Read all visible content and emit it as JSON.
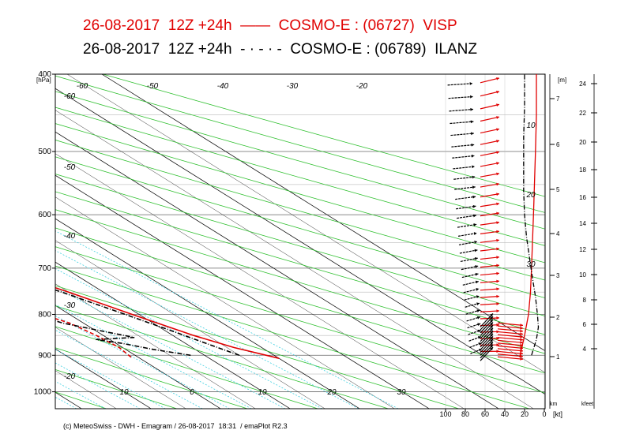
{
  "titles": {
    "line1": "26-08-2017  12Z +24h  ——  COSMO-E : (06727)  VISP",
    "line2": "26-08-2017  12Z +24h  - · - · -  COSMO-E : (06789)  ILANZ"
  },
  "footer": "(c) MeteoSwiss - DWH - Emagram / 26-08-2017  18:31  / emaPlot R2.3",
  "colors": {
    "visp": "#e00000",
    "ilanz": "#000000",
    "dry_adiabat": "#30c030",
    "mixing_ratio": "#40d0e0",
    "isotherm": "#000000",
    "grid": "#888888"
  },
  "chart_data": {
    "type": "line",
    "yunit": "[hPa]",
    "xlim": [
      -60,
      40
    ],
    "ylim": [
      400,
      1050
    ],
    "pressure_ticks": [
      "400",
      "500",
      "600",
      "700",
      "800",
      "900",
      "1000"
    ],
    "temp_labels": [
      {
        "t": -60,
        "text": "-60"
      },
      {
        "t": -50,
        "text": "-50"
      },
      {
        "t": -40,
        "text": "-40"
      },
      {
        "t": -30,
        "text": "-30"
      },
      {
        "t": -20,
        "text": "-20"
      },
      {
        "t": 10,
        "text": "10"
      },
      {
        "t": 0,
        "text": "0"
      },
      {
        "t": 10,
        "text": "10"
      },
      {
        "t": 20,
        "text": "20"
      },
      {
        "t": 30,
        "text": "30"
      }
    ],
    "top_labels": [
      "-60",
      "-50",
      "-40",
      "-30",
      "-20"
    ],
    "km_axis": {
      "unit": "[m]",
      "label": "km",
      "ticks": [
        "1",
        "2",
        "3",
        "4",
        "5",
        "6",
        "7"
      ]
    },
    "kfeet_axis": {
      "label": "kfeet",
      "ticks": [
        "4",
        "6",
        "8",
        "10",
        "12",
        "14",
        "16",
        "18",
        "20",
        "22",
        "24"
      ]
    },
    "wind_axis": {
      "unit": "[kt]",
      "ticks": [
        "100",
        "80",
        "60",
        "40",
        "20",
        "0"
      ]
    },
    "wind_profile_labels": [
      "10",
      "20",
      "30"
    ],
    "series": [
      {
        "name": "VISP",
        "style": "solid",
        "variable": "temperature",
        "points": [
          [
            908,
            20
          ],
          [
            880,
            16
          ],
          [
            850,
            13
          ],
          [
            800,
            9
          ],
          [
            750,
            5
          ],
          [
            700,
            0
          ],
          [
            650,
            -4
          ],
          [
            600,
            -8
          ],
          [
            550,
            -12
          ],
          [
            500,
            -18
          ],
          [
            450,
            -23
          ],
          [
            400,
            -28
          ]
        ]
      },
      {
        "name": "VISP",
        "style": "dashed",
        "variable": "dewpoint",
        "points": [
          [
            905,
            -1
          ],
          [
            880,
            -0.5
          ],
          [
            850,
            -1
          ],
          [
            820,
            -2
          ],
          [
            800,
            -4
          ],
          [
            770,
            -6
          ],
          [
            740,
            -8
          ],
          [
            700,
            -11
          ],
          [
            660,
            -14
          ],
          [
            620,
            -17
          ],
          [
            580,
            -21
          ],
          [
            540,
            -25
          ],
          [
            500,
            -30
          ],
          [
            460,
            -34
          ],
          [
            430,
            -37
          ],
          [
            400,
            -40
          ]
        ]
      },
      {
        "name": "ILANZ",
        "style": "dashdot",
        "variable": "temperature",
        "points": [
          [
            900,
            15
          ],
          [
            870,
            13
          ],
          [
            840,
            11
          ],
          [
            800,
            8
          ],
          [
            750,
            4
          ],
          [
            700,
            -1
          ],
          [
            650,
            -5
          ],
          [
            600,
            -9
          ],
          [
            550,
            -13
          ],
          [
            500,
            -18
          ],
          [
            450,
            -23
          ],
          [
            400,
            -28
          ]
        ]
      },
      {
        "name": "ILANZ",
        "style": "dashdot",
        "variable": "dewpoint",
        "points": [
          [
            900,
            8
          ],
          [
            885,
            4
          ],
          [
            870,
            1
          ],
          [
            860,
            -2
          ],
          [
            855,
            4
          ],
          [
            840,
            1
          ],
          [
            820,
            -3
          ],
          [
            800,
            -5
          ],
          [
            770,
            -7
          ],
          [
            740,
            -9
          ],
          [
            700,
            -12
          ],
          [
            660,
            -15
          ],
          [
            620,
            -18
          ],
          [
            580,
            -22
          ],
          [
            540,
            -26
          ],
          [
            500,
            -31
          ],
          [
            460,
            -35
          ],
          [
            430,
            -38
          ],
          [
            400,
            -41
          ]
        ]
      }
    ],
    "profiles": [
      {
        "name": "VISP",
        "style": "solid",
        "points": [
          [
            905,
            25
          ],
          [
            850,
            20
          ],
          [
            800,
            16
          ],
          [
            750,
            14
          ],
          [
            700,
            13
          ],
          [
            650,
            12
          ],
          [
            600,
            11
          ],
          [
            550,
            10
          ],
          [
            500,
            9
          ],
          [
            450,
            8
          ],
          [
            400,
            8
          ]
        ]
      },
      {
        "name": "ILANZ",
        "style": "dashdot",
        "points": [
          [
            900,
            13
          ],
          [
            860,
            8
          ],
          [
            830,
            6
          ],
          [
            800,
            7
          ],
          [
            760,
            9
          ],
          [
            720,
            12
          ],
          [
            680,
            15
          ],
          [
            640,
            18
          ],
          [
            600,
            20
          ],
          [
            560,
            21
          ],
          [
            520,
            21
          ],
          [
            480,
            21
          ],
          [
            440,
            20
          ],
          [
            400,
            20
          ]
        ]
      }
    ]
  }
}
